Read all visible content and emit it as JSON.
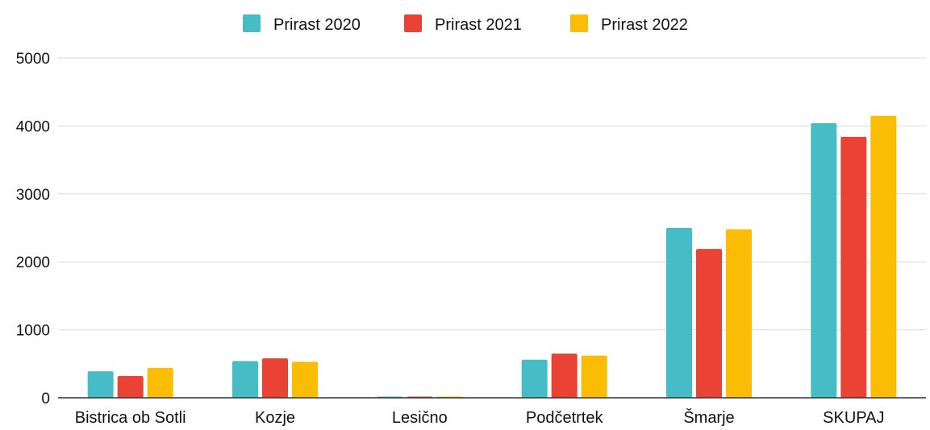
{
  "chart_data": {
    "type": "bar",
    "title": "",
    "xlabel": "",
    "ylabel": "",
    "categories": [
      "Bistrica ob Sotli",
      "Kozje",
      "Lesično",
      "Podčetrtek",
      "Šmarje",
      "SKUPAJ"
    ],
    "series": [
      {
        "name": "Prirast 2020",
        "color": "#46bdc6",
        "values": [
          390,
          540,
          15,
          560,
          2500,
          4040
        ]
      },
      {
        "name": "Prirast 2021",
        "color": "#ea4335",
        "values": [
          320,
          580,
          12,
          650,
          2190,
          3840
        ]
      },
      {
        "name": "Prirast 2022",
        "color": "#fbbc04",
        "values": [
          440,
          530,
          10,
          620,
          2480,
          4150
        ]
      }
    ],
    "ylim": [
      0,
      5000
    ],
    "yticks": [
      "0",
      "1000",
      "2000",
      "3000",
      "4000",
      "5000"
    ],
    "ytick_values": [
      0,
      1000,
      2000,
      3000,
      4000,
      5000
    ],
    "grid": true,
    "legend_position": "top"
  }
}
